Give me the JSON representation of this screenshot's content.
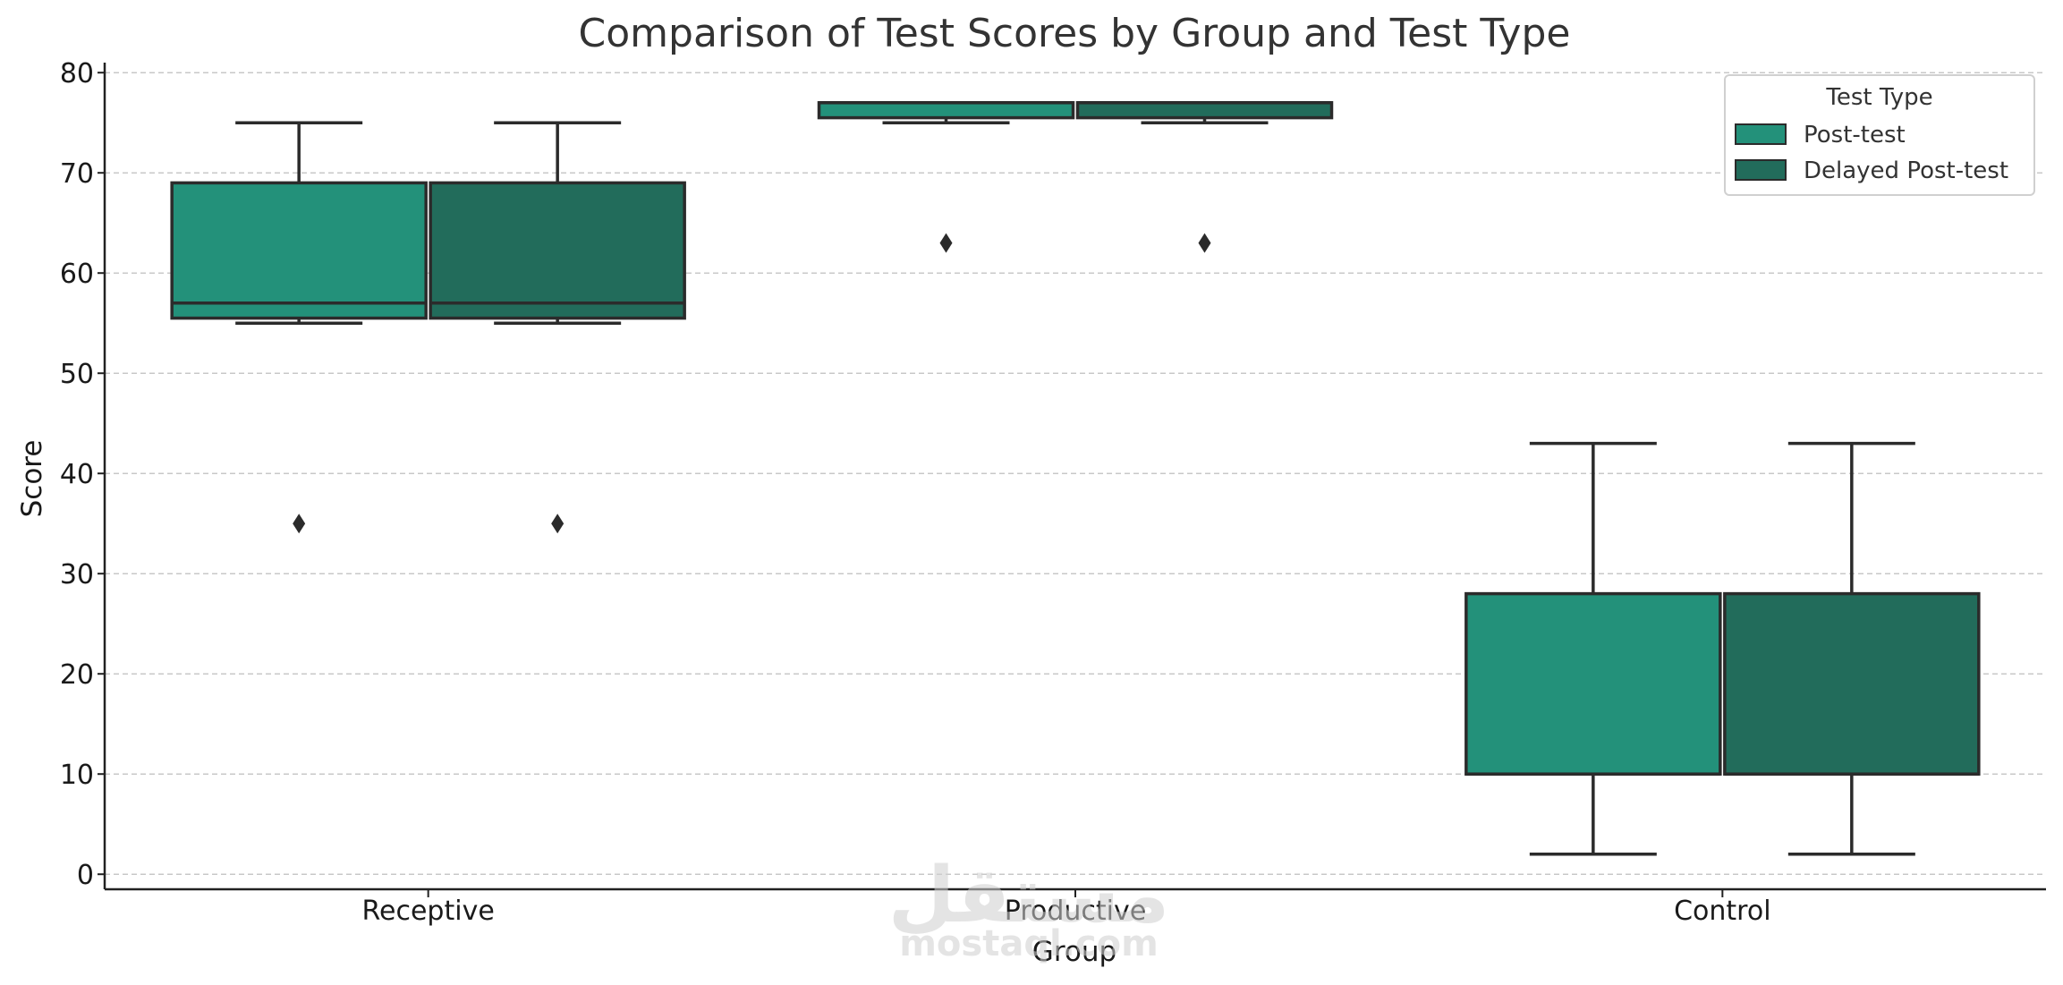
{
  "chart_data": {
    "type": "box",
    "title": "Comparison of Test Scores by Group and Test Type",
    "xlabel": "Group",
    "ylabel": "Score",
    "categories": [
      "Receptive",
      "Productive",
      "Control"
    ],
    "ylim": [
      -1.5,
      81
    ],
    "yticks": [
      0,
      10,
      20,
      30,
      40,
      50,
      60,
      70,
      80
    ],
    "grid": "horizontal dashed",
    "legend": {
      "title": "Test Type",
      "placement": "top-right",
      "entries": [
        "Post-test",
        "Delayed Post-test"
      ]
    },
    "series": [
      {
        "name": "Post-test",
        "color": "#23917a",
        "boxes": [
          {
            "min": 55,
            "q1": 55.5,
            "median": 57,
            "q3": 69,
            "max": 75,
            "outliers": [
              35
            ]
          },
          {
            "min": 75,
            "q1": 75.5,
            "median": 77,
            "q3": 77,
            "max": 77,
            "outliers": [
              63
            ]
          },
          {
            "min": 2,
            "q1": 10,
            "median": 10,
            "q3": 28,
            "max": 43,
            "outliers": []
          }
        ]
      },
      {
        "name": "Delayed Post-test",
        "color": "#226c5b",
        "boxes": [
          {
            "min": 55,
            "q1": 55.5,
            "median": 57,
            "q3": 69,
            "max": 75,
            "outliers": [
              35
            ]
          },
          {
            "min": 75,
            "q1": 75.5,
            "median": 77,
            "q3": 77,
            "max": 77,
            "outliers": [
              63
            ]
          },
          {
            "min": 2,
            "q1": 10,
            "median": 10,
            "q3": 28,
            "max": 43,
            "outliers": []
          }
        ]
      }
    ]
  },
  "watermark": {
    "arabic": "مستقل",
    "latin": "mostaql.com"
  }
}
